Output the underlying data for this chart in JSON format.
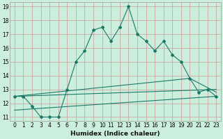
{
  "xlabel": "Humidex (Indice chaleur)",
  "bg_color": "#cceedd",
  "grid_color": "#cc9999",
  "line_color": "#1a7a6a",
  "xlim": [
    -0.5,
    23.5
  ],
  "ylim": [
    10.7,
    19.3
  ],
  "xticks": [
    0,
    1,
    2,
    3,
    4,
    5,
    6,
    7,
    8,
    9,
    10,
    11,
    12,
    13,
    14,
    15,
    16,
    17,
    18,
    19,
    20,
    21,
    22,
    23
  ],
  "yticks": [
    11,
    12,
    13,
    14,
    15,
    16,
    17,
    18,
    19
  ],
  "line1_x": [
    0,
    23
  ],
  "line1_y": [
    11.5,
    12.5
  ],
  "line2_x": [
    0,
    23
  ],
  "line2_y": [
    12.5,
    13.0
  ],
  "line3_x": [
    0,
    20,
    23
  ],
  "line3_y": [
    12.5,
    13.8,
    12.8
  ],
  "line4_x": [
    0,
    1,
    2,
    3,
    4,
    5,
    6,
    7,
    8,
    9,
    10,
    11,
    12,
    13,
    14,
    15,
    16,
    17,
    18,
    19,
    20,
    21,
    22,
    23
  ],
  "line4_y": [
    12.5,
    12.5,
    11.8,
    11.0,
    11.0,
    11.0,
    13.0,
    15.0,
    15.8,
    17.3,
    17.5,
    16.5,
    17.5,
    19.0,
    17.0,
    16.5,
    15.8,
    16.5,
    15.5,
    15.0,
    13.8,
    12.8,
    13.0,
    12.5
  ],
  "marker": "D",
  "markersize": 2.0,
  "linewidth": 0.8,
  "tick_fontsize": 5.5,
  "xlabel_fontsize": 6.5
}
